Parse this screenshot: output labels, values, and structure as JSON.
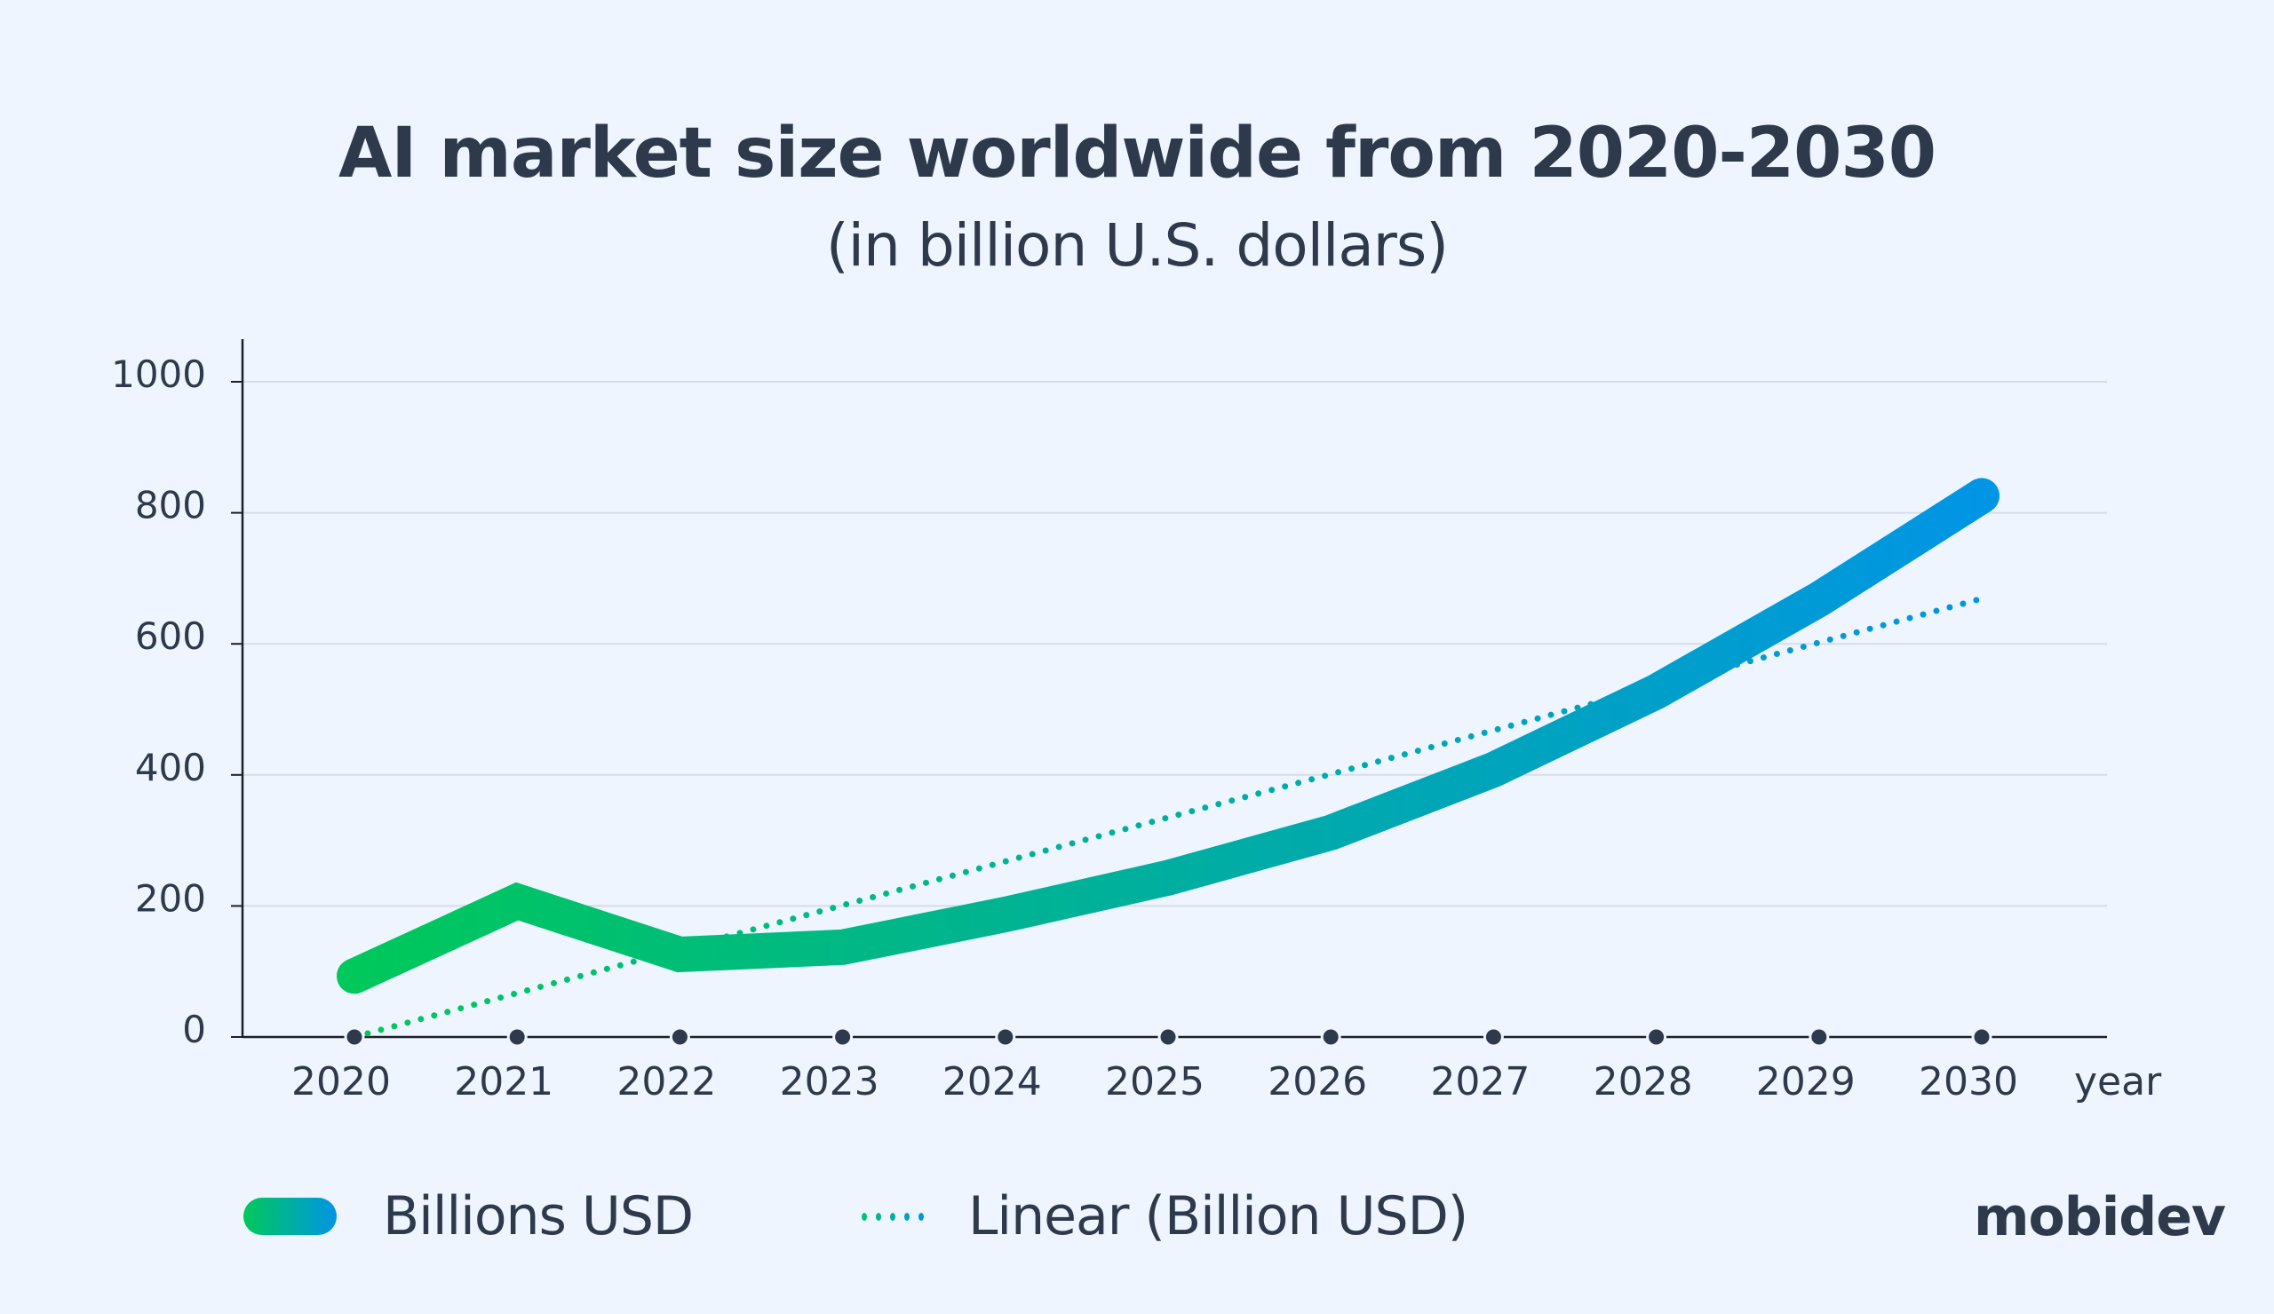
{
  "title": "AI market size worldwide from 2020-2030",
  "subtitle": "(in billion U.S. dollars)",
  "logo": "mobidev",
  "colors": {
    "background": "#eff5fe",
    "text": "#2e3a4c",
    "series_start": "#00c85a",
    "series_end": "#0095e5",
    "grid": "#d7dde6",
    "axis": "#1b1f26"
  },
  "legend": [
    {
      "label": "Billions USD",
      "style": "thick-gradient-line"
    },
    {
      "label": "Linear (Billion USD)",
      "style": "dotted-line"
    }
  ],
  "chart_data": {
    "type": "line",
    "title": "AI market size worldwide from 2020-2030",
    "subtitle": "(in billion U.S. dollars)",
    "xlabel": "year",
    "ylabel": "",
    "x": [
      2020,
      2021,
      2022,
      2023,
      2024,
      2025,
      2026,
      2027,
      2028,
      2029,
      2030
    ],
    "x_tick_labels": [
      "2020",
      "2021",
      "2022",
      "2023",
      "2024",
      "2025",
      "2026",
      "2027",
      "2028",
      "2029",
      "2030"
    ],
    "y_ticks": [
      0,
      200,
      400,
      600,
      800,
      1000
    ],
    "y_tick_labels": [
      "0",
      "200",
      "400",
      "600",
      "800",
      "1000"
    ],
    "ylim": [
      0,
      1000
    ],
    "grid": true,
    "legend_position": "bottom",
    "series": [
      {
        "name": "Billions USD",
        "style": "solid-thick-gradient",
        "values": [
          93,
          207,
          126,
          137,
          187,
          243,
          312,
          408,
          527,
          668,
          826
        ]
      },
      {
        "name": "Linear (Billion USD)",
        "style": "dotted-trendline",
        "values": [
          0,
          67,
          134,
          201,
          268,
          335,
          401,
          468,
          535,
          602,
          669
        ]
      }
    ]
  }
}
